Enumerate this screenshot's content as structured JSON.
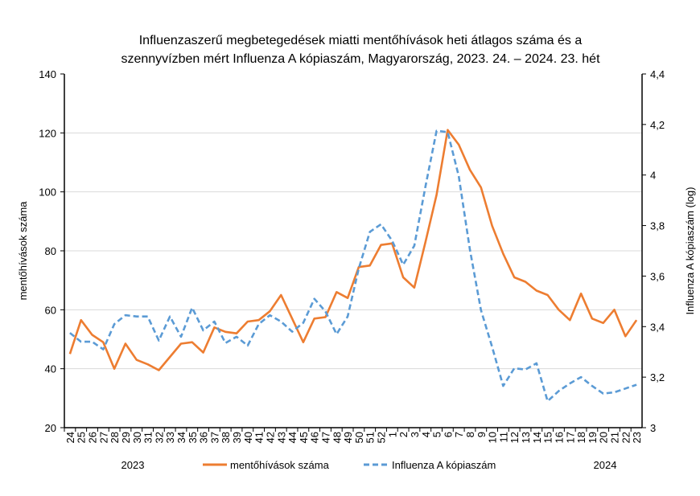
{
  "chart_data": {
    "type": "line",
    "title": [
      "Influenzaszerű megbetegedések miatti mentőhívások heti átlagos száma és a",
      "szennyvízben mért Influenza A kópiaszám, Magyarország, 2023. 24. – 2024. 23. hét"
    ],
    "ylabel": "mentőhívások száma",
    "y2label": "Influenza A kópiaszám (log)",
    "ylim": [
      20,
      140
    ],
    "yticks": [
      "20",
      "40",
      "60",
      "80",
      "100",
      "120",
      "140"
    ],
    "y2lim": [
      3,
      4.4
    ],
    "y2ticks": [
      "3",
      "3,2",
      "3,4",
      "3,6",
      "3,8",
      "4",
      "4,2",
      "4,4"
    ],
    "grid": true,
    "legend_placement": "bottom",
    "year_labels": [
      "2023",
      "2024"
    ],
    "categories": [
      "24",
      "25",
      "26",
      "27",
      "28",
      "29",
      "30",
      "31",
      "32",
      "33",
      "34",
      "35",
      "36",
      "37",
      "38",
      "39",
      "40",
      "41",
      "42",
      "43",
      "44",
      "45",
      "46",
      "47",
      "48",
      "49",
      "50",
      "51",
      "52",
      "1",
      "2",
      "3",
      "4",
      "5",
      "6",
      "7",
      "8",
      "9",
      "10",
      "11",
      "12",
      "13",
      "14",
      "15",
      "16",
      "17",
      "18",
      "19",
      "20",
      "21",
      "22",
      "23"
    ],
    "series": [
      {
        "name": "mentőhívások száma",
        "axis": "left",
        "color": "#ED7D31",
        "style": "solid",
        "values": [
          45,
          56.5,
          51.5,
          49,
          40,
          48.5,
          43,
          41.5,
          39.5,
          44,
          48.5,
          49,
          45.5,
          54,
          52.5,
          52,
          56,
          56.5,
          59.5,
          65,
          57,
          49,
          57,
          57.5,
          66,
          64,
          74.5,
          75,
          82,
          82.5,
          71,
          67.5,
          83,
          99,
          121,
          116,
          107.5,
          101.5,
          88.5,
          79,
          71,
          69.5,
          66.5,
          65,
          60,
          56.5,
          65.5,
          57,
          55.5,
          60,
          51,
          56.5
        ]
      },
      {
        "name": "Influenza A kópiaszám",
        "axis": "right",
        "color": "#5B9BD5",
        "style": "dashed",
        "values": [
          3.375,
          3.34,
          3.34,
          3.31,
          3.41,
          3.445,
          3.44,
          3.44,
          3.345,
          3.44,
          3.36,
          3.475,
          3.385,
          3.42,
          3.335,
          3.36,
          3.325,
          3.41,
          3.445,
          3.42,
          3.38,
          3.415,
          3.51,
          3.46,
          3.37,
          3.44,
          3.63,
          3.775,
          3.805,
          3.74,
          3.645,
          3.72,
          3.955,
          4.175,
          4.17,
          3.995,
          3.705,
          3.465,
          3.32,
          3.165,
          3.235,
          3.23,
          3.255,
          3.105,
          3.145,
          3.175,
          3.2,
          3.165,
          3.135,
          3.14,
          3.155,
          3.17
        ]
      }
    ]
  }
}
